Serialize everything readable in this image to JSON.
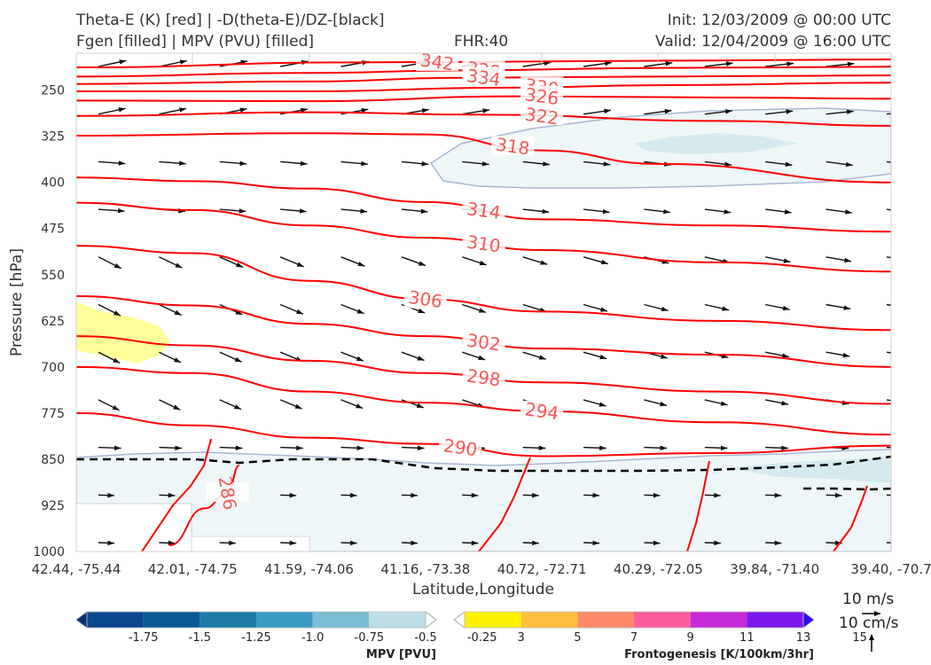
{
  "header": {
    "title_line1": "Theta-E (K) [red] | -D(theta-E)/DZ-[black]",
    "title_line2": "Fgen [filled] | MPV (PVU) [filled]",
    "fhr": "FHR:40",
    "init": "Init: 12/03/2009 @ 00:00 UTC",
    "valid": "Valid: 12/04/2009 @ 16:00 UTC"
  },
  "chart_data": {
    "type": "cross-section",
    "ylabel": "Pressure [hPa]",
    "xlabel": "Latitude,Longitude",
    "y_ticks": [
      "250",
      "325",
      "400",
      "475",
      "550",
      "625",
      "700",
      "775",
      "850",
      "925",
      "1000"
    ],
    "ylim": [
      1000,
      190
    ],
    "x_ticks": [
      "42.44, -75.44",
      "42.01, -74.75",
      "41.59, -74.06",
      "41.16, -73.38",
      "40.72, -72.71",
      "40.29, -72.05",
      "39.84, -71.40",
      "39.40, -70.7"
    ],
    "theta_e_contours": [
      {
        "label": "342",
        "points": [
          [
            0,
            213
          ],
          [
            2.4,
            205
          ],
          [
            3.5,
            204
          ],
          [
            7,
            200
          ]
        ]
      },
      {
        "label": "338",
        "points": [
          [
            0,
            228
          ],
          [
            2,
            222
          ],
          [
            3.3,
            218
          ],
          [
            5,
            214
          ],
          [
            7,
            212
          ]
        ]
      },
      {
        "label": "334",
        "points": [
          [
            0,
            240
          ],
          [
            2,
            236
          ],
          [
            3.3,
            230
          ],
          [
            5,
            228
          ],
          [
            7,
            226
          ]
        ]
      },
      {
        "label": "330",
        "points": [
          [
            0,
            252
          ],
          [
            2,
            252
          ],
          [
            3.7,
            246
          ],
          [
            5,
            242
          ],
          [
            7,
            238
          ]
        ]
      },
      {
        "label": "326",
        "points": [
          [
            0,
            267
          ],
          [
            2,
            268
          ],
          [
            3.8,
            260
          ],
          [
            5.5,
            262
          ],
          [
            7,
            264
          ]
        ]
      },
      {
        "label": "322",
        "points": [
          [
            0,
            292
          ],
          [
            2,
            286
          ],
          [
            3.5,
            290
          ],
          [
            5.5,
            300
          ],
          [
            7,
            308
          ]
        ]
      },
      {
        "label": "318",
        "points": [
          [
            0,
            324
          ],
          [
            2,
            320
          ],
          [
            3,
            322
          ],
          [
            4,
            348
          ],
          [
            5,
            370
          ],
          [
            7,
            400
          ]
        ]
      },
      {
        "label": "314",
        "points": [
          [
            0,
            392
          ],
          [
            1,
            398
          ],
          [
            2,
            410
          ],
          [
            3,
            432
          ],
          [
            4,
            460
          ],
          [
            5.5,
            470
          ],
          [
            7,
            480
          ]
        ]
      },
      {
        "label": "310",
        "points": [
          [
            0,
            433
          ],
          [
            1,
            445
          ],
          [
            2,
            470
          ],
          [
            3,
            490
          ],
          [
            4,
            510
          ],
          [
            5.5,
            530
          ],
          [
            7,
            545
          ]
        ]
      },
      {
        "label": "306",
        "points": [
          [
            0,
            503
          ],
          [
            1,
            515
          ],
          [
            2,
            560
          ],
          [
            3,
            590
          ],
          [
            4,
            610
          ],
          [
            5.5,
            625
          ],
          [
            7,
            640
          ]
        ]
      },
      {
        "label": "302",
        "points": [
          [
            0,
            585
          ],
          [
            1,
            600
          ],
          [
            2,
            630
          ],
          [
            3,
            650
          ],
          [
            4,
            670
          ],
          [
            5.5,
            680
          ],
          [
            7,
            700
          ]
        ]
      },
      {
        "label": "298",
        "points": [
          [
            0,
            650
          ],
          [
            1,
            665
          ],
          [
            2,
            690
          ],
          [
            3,
            710
          ],
          [
            4,
            725
          ],
          [
            5.5,
            740
          ],
          [
            7,
            760
          ]
        ]
      },
      {
        "label": "294",
        "points": [
          [
            0,
            700
          ],
          [
            1,
            710
          ],
          [
            2,
            740
          ],
          [
            3,
            758
          ],
          [
            4,
            772
          ],
          [
            5.5,
            790
          ],
          [
            7,
            810
          ]
        ]
      },
      {
        "label": "290",
        "points": [
          [
            0,
            775
          ],
          [
            1,
            795
          ],
          [
            2,
            815
          ],
          [
            3,
            825
          ],
          [
            4,
            845
          ],
          [
            5.5,
            840
          ],
          [
            7,
            828
          ]
        ]
      },
      {
        "label": "286",
        "points": [
          [
            0.8,
            990
          ],
          [
            1.1,
            930
          ],
          [
            1.3,
            905
          ],
          [
            1.4,
            860
          ]
        ]
      }
    ],
    "static_stability_contour": {
      "style": "dashed",
      "color": "#000000",
      "level_hpa": 850
    },
    "mpv_colorbar": {
      "label": "MPV [PVU]",
      "ticks": [
        "-1.75",
        "-1.5",
        "-1.25",
        "-1.0",
        "-0.75",
        "-0.5",
        "-0.25"
      ],
      "colors": [
        "#08306b",
        "#08488e",
        "#0b5a95",
        "#1b7ba5",
        "#3a9bc1",
        "#7cbcd4",
        "#bfdde6",
        "#ffffff"
      ]
    },
    "fgen_colorbar": {
      "label": "Frontogenesis [K/100km/3hr]",
      "ticks": [
        "3",
        "5",
        "7",
        "9",
        "11",
        "13",
        "15"
      ],
      "colors": [
        "#ffffff",
        "#fff200",
        "#ffc040",
        "#ff8a6a",
        "#ff5ca0",
        "#c52ad8",
        "#7a18ee",
        "#2a0cf8"
      ]
    },
    "fill_colors": {
      "mpv_light": "#eef6f7",
      "mpv_medium": "#d5eaef",
      "fgen_yellow": "#ffff99",
      "contour": "#ff0000",
      "contour_label": "#f05a5a"
    },
    "vector_scale": {
      "horizontal": "10 m/s",
      "vertical": "10 cm/s"
    }
  }
}
